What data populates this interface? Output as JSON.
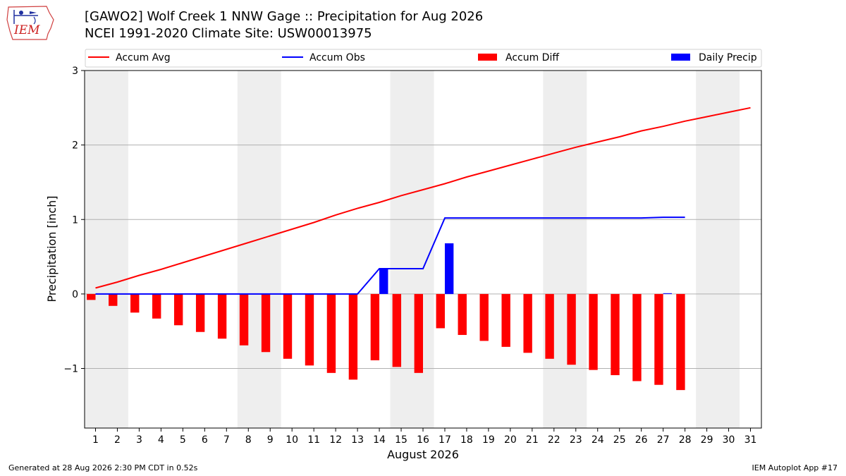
{
  "header": {
    "title_line1": "[GAWO2] Wolf Creek 1 NNW Gage :: Precipitation for Aug 2026",
    "title_line2": "NCEI 1991-2020 Climate Site: USW00013975"
  },
  "logo": {
    "text": "IEM"
  },
  "footer": {
    "generated": "Generated at 28 Aug 2026 2:30 PM CDT in 0.52s",
    "app": "IEM Autoplot App #17"
  },
  "colors": {
    "accum_avg": "#ff0000",
    "accum_obs": "#0000ff",
    "accum_diff": "#ff0000",
    "daily_precip": "#0000ff",
    "weekend_band": "#eeeeee",
    "grid": "#b0b0b0"
  },
  "chart_data": {
    "type": "bar",
    "title": "[GAWO2] Wolf Creek 1 NNW Gage :: Precipitation for Aug 2026",
    "subtitle": "NCEI 1991-2020 Climate Site: USW00013975",
    "xlabel": "August 2026",
    "ylabel": "Precipitation [inch]",
    "ylim": [
      -1.8,
      3.0
    ],
    "xlim": [
      0.5,
      31.5
    ],
    "yticks": [
      -1,
      0,
      1,
      2,
      3
    ],
    "ytick_labels": [
      "−1",
      "0",
      "1",
      "2",
      "3"
    ],
    "x": [
      1,
      2,
      3,
      4,
      5,
      6,
      7,
      8,
      9,
      10,
      11,
      12,
      13,
      14,
      15,
      16,
      17,
      18,
      19,
      20,
      21,
      22,
      23,
      24,
      25,
      26,
      27,
      28,
      29,
      30,
      31
    ],
    "xtick_labels": [
      "1",
      "2",
      "3",
      "4",
      "5",
      "6",
      "7",
      "8",
      "9",
      "10",
      "11",
      "12",
      "13",
      "14",
      "15",
      "16",
      "17",
      "18",
      "19",
      "20",
      "21",
      "22",
      "23",
      "24",
      "25",
      "26",
      "27",
      "28",
      "29",
      "30",
      "31"
    ],
    "grid": "horizontal",
    "legend_placement": "top",
    "weekend_days": [
      1,
      2,
      8,
      9,
      15,
      16,
      22,
      23,
      29,
      30
    ],
    "series": [
      {
        "name": "Accum Avg",
        "kind": "line",
        "color": "#ff0000",
        "x": [
          1,
          2,
          3,
          4,
          5,
          6,
          7,
          8,
          9,
          10,
          11,
          12,
          13,
          14,
          15,
          16,
          17,
          18,
          19,
          20,
          21,
          22,
          23,
          24,
          25,
          26,
          27,
          28,
          29,
          30,
          31
        ],
        "values": [
          0.08,
          0.16,
          0.25,
          0.33,
          0.42,
          0.51,
          0.6,
          0.69,
          0.78,
          0.87,
          0.96,
          1.06,
          1.15,
          1.23,
          1.32,
          1.4,
          1.48,
          1.57,
          1.65,
          1.73,
          1.81,
          1.89,
          1.97,
          2.04,
          2.11,
          2.19,
          2.25,
          2.32,
          2.38,
          2.44,
          2.5
        ]
      },
      {
        "name": "Accum Obs",
        "kind": "line",
        "color": "#0000ff",
        "x": [
          1,
          2,
          3,
          4,
          5,
          6,
          7,
          8,
          9,
          10,
          11,
          12,
          13,
          14,
          15,
          16,
          17,
          18,
          19,
          20,
          21,
          22,
          23,
          24,
          25,
          26,
          27,
          28
        ],
        "values": [
          0,
          0,
          0,
          0,
          0,
          0,
          0,
          0,
          0,
          0,
          0,
          0,
          0,
          0.34,
          0.34,
          0.34,
          1.02,
          1.02,
          1.02,
          1.02,
          1.02,
          1.02,
          1.02,
          1.02,
          1.02,
          1.02,
          1.03,
          1.03
        ]
      },
      {
        "name": "Accum Diff",
        "kind": "bar",
        "color": "#ff0000",
        "x": [
          1,
          2,
          3,
          4,
          5,
          6,
          7,
          8,
          9,
          10,
          11,
          12,
          13,
          14,
          15,
          16,
          17,
          18,
          19,
          20,
          21,
          22,
          23,
          24,
          25,
          26,
          27,
          28
        ],
        "values": [
          -0.08,
          -0.16,
          -0.25,
          -0.33,
          -0.42,
          -0.51,
          -0.6,
          -0.69,
          -0.78,
          -0.87,
          -0.96,
          -1.06,
          -1.15,
          -0.89,
          -0.98,
          -1.06,
          -0.46,
          -0.55,
          -0.63,
          -0.71,
          -0.79,
          -0.87,
          -0.95,
          -1.02,
          -1.09,
          -1.17,
          -1.22,
          -1.29
        ]
      },
      {
        "name": "Daily Precip",
        "kind": "bar",
        "color": "#0000ff",
        "x": [
          1,
          2,
          3,
          4,
          5,
          6,
          7,
          8,
          9,
          10,
          11,
          12,
          13,
          14,
          15,
          16,
          17,
          18,
          19,
          20,
          21,
          22,
          23,
          24,
          25,
          26,
          27,
          28
        ],
        "values": [
          0,
          0,
          0,
          0,
          0,
          0,
          0,
          0,
          0,
          0,
          0,
          0,
          0,
          0.34,
          0,
          0,
          0.68,
          0,
          0,
          0,
          0,
          0,
          0,
          0,
          0,
          0,
          0.01,
          0
        ]
      }
    ]
  }
}
